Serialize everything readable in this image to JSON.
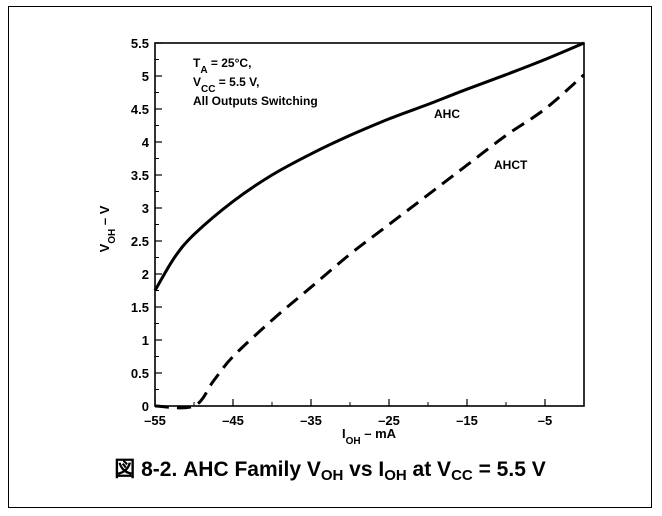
{
  "chart_data": {
    "type": "line",
    "xlabel": {
      "main": "I",
      "sub": "OH",
      "rest": " – mA"
    },
    "ylabel": {
      "main": "V",
      "sub": "OH",
      "rest": " – V"
    },
    "xlim": [
      -55,
      0
    ],
    "ylim": [
      0,
      5.5
    ],
    "xticks": [
      -55,
      -45,
      -35,
      -25,
      -15,
      -5
    ],
    "yticks": [
      0,
      0.5,
      1,
      1.5,
      2,
      2.5,
      3,
      3.5,
      4,
      4.5,
      5,
      5.5
    ],
    "grid": false,
    "conditions": [
      {
        "main": "T",
        "sub": "A",
        "rest": " = 25°C,"
      },
      {
        "main": "V",
        "sub": "CC",
        "rest": " = 5.5 V,"
      },
      {
        "main": "All Outputs Switching",
        "sub": "",
        "rest": ""
      }
    ],
    "series": [
      {
        "name": "AHC",
        "style": "solid",
        "points": [
          [
            -55,
            1.75
          ],
          [
            -52.5,
            2.25
          ],
          [
            -50,
            2.6
          ],
          [
            -45,
            3.1
          ],
          [
            -40,
            3.5
          ],
          [
            -35,
            3.82
          ],
          [
            -30,
            4.1
          ],
          [
            -25,
            4.35
          ],
          [
            -20,
            4.57
          ],
          [
            -15,
            4.8
          ],
          [
            -10,
            5.02
          ],
          [
            -5,
            5.25
          ],
          [
            0,
            5.5
          ]
        ]
      },
      {
        "name": "AHCT",
        "style": "dashed",
        "points": [
          [
            -55,
            0
          ],
          [
            -50,
            0
          ],
          [
            -47.5,
            0.38
          ],
          [
            -45,
            0.75
          ],
          [
            -40,
            1.3
          ],
          [
            -35,
            1.8
          ],
          [
            -30,
            2.3
          ],
          [
            -25,
            2.75
          ],
          [
            -20,
            3.2
          ],
          [
            -15,
            3.65
          ],
          [
            -10,
            4.1
          ],
          [
            -5,
            4.5
          ],
          [
            0,
            5.02
          ]
        ]
      }
    ]
  },
  "caption": {
    "prefix": "図 8-2. AHC Family V",
    "sub1": "OH",
    "mid1": " vs I",
    "sub2": "OH",
    "mid2": " at V",
    "sub3": "CC",
    "suffix": " = 5.5 V"
  }
}
